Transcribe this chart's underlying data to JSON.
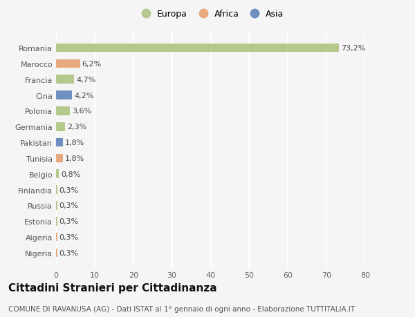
{
  "categories": [
    "Romania",
    "Marocco",
    "Francia",
    "Cina",
    "Polonia",
    "Germania",
    "Pakistan",
    "Tunisia",
    "Belgio",
    "Finlandia",
    "Russia",
    "Estonia",
    "Algeria",
    "Nigeria"
  ],
  "values": [
    73.2,
    6.2,
    4.7,
    4.2,
    3.6,
    2.3,
    1.8,
    1.8,
    0.8,
    0.3,
    0.3,
    0.3,
    0.3,
    0.3
  ],
  "labels": [
    "73,2%",
    "6,2%",
    "4,7%",
    "4,2%",
    "3,6%",
    "2,3%",
    "1,8%",
    "1,8%",
    "0,8%",
    "0,3%",
    "0,3%",
    "0,3%",
    "0,3%",
    "0,3%"
  ],
  "colors": [
    "#b5c98e",
    "#e8a97e",
    "#b5c98e",
    "#6e8fc0",
    "#b5c98e",
    "#b5c98e",
    "#6e8fc0",
    "#e8a97e",
    "#b5c98e",
    "#b5c98e",
    "#b5c98e",
    "#b5c98e",
    "#e8a97e",
    "#e8a97e"
  ],
  "legend_labels": [
    "Europa",
    "Africa",
    "Asia"
  ],
  "legend_colors": [
    "#b5c98e",
    "#e8a97e",
    "#6e8fc0"
  ],
  "xlim": [
    0,
    80
  ],
  "xticks": [
    0,
    10,
    20,
    30,
    40,
    50,
    60,
    70,
    80
  ],
  "title": "Cittadini Stranieri per Cittadinanza",
  "subtitle": "COMUNE DI RAVANUSA (AG) - Dati ISTAT al 1° gennaio di ogni anno - Elaborazione TUTTITALIA.IT",
  "background_color": "#f5f5f5",
  "grid_color": "#ffffff",
  "bar_height": 0.55,
  "title_fontsize": 11,
  "subtitle_fontsize": 7.5,
  "tick_fontsize": 8,
  "label_fontsize": 8
}
